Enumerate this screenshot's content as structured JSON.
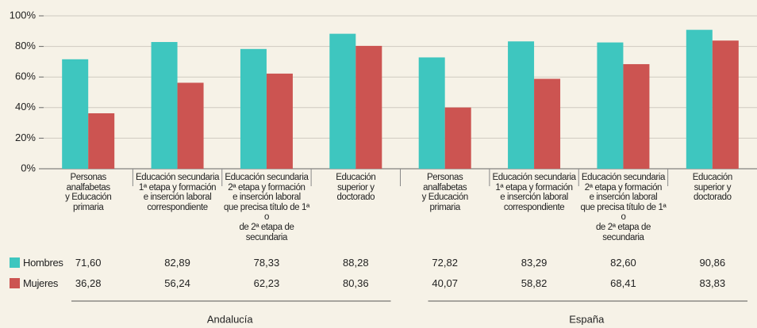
{
  "chart_data": {
    "type": "bar",
    "categories": [
      "Personas\nanalfabetas\ny Educación\nprimaria",
      "Educación secundaria\n1ª etapa y formación\ne inserción laboral\ncorrespondiente",
      "Educación secundaria\n2ª etapa y formación\ne inserción laboral\nque precisa título de 1ª o\nde 2ª etapa de secundaria",
      "Educación\nsuperior y\ndoctorado",
      "Personas\nanalfabetas\ny Educación\nprimaria",
      "Educación secundaria\n1ª etapa y formación\ne inserción laboral\ncorrespondiente",
      "Educación secundaria\n2ª etapa y formación\ne inserción laboral\nque precisa título de 1ª o\nde 2ª etapa de secundaria",
      "Educación\nsuperior y\ndoctorado"
    ],
    "groups": [
      "Andalucía",
      "España"
    ],
    "series": [
      {
        "name": "Hombres",
        "color": "#3ec6bf",
        "values": [
          71.6,
          82.89,
          78.33,
          88.28,
          72.82,
          83.29,
          82.6,
          90.86
        ],
        "value_labels": [
          "71,60",
          "82,89",
          "78,33",
          "88,28",
          "72,82",
          "83,29",
          "82,60",
          "90,86"
        ]
      },
      {
        "name": "Mujeres",
        "color": "#cc5451",
        "values": [
          36.28,
          56.24,
          62.23,
          80.36,
          40.07,
          58.82,
          68.41,
          83.83
        ],
        "value_labels": [
          "36,28",
          "56,24",
          "62,23",
          "80,36",
          "40,07",
          "58,82",
          "68,41",
          "83,83"
        ]
      }
    ],
    "ylim": [
      0,
      100
    ],
    "yticks": [
      {
        "value": 0,
        "label": "0%"
      },
      {
        "value": 20,
        "label": "20%"
      },
      {
        "value": 40,
        "label": "40%"
      },
      {
        "value": 60,
        "label": "60%"
      },
      {
        "value": 80,
        "label": "80%"
      },
      {
        "value": 100,
        "label": "100%"
      }
    ],
    "grid": true
  }
}
